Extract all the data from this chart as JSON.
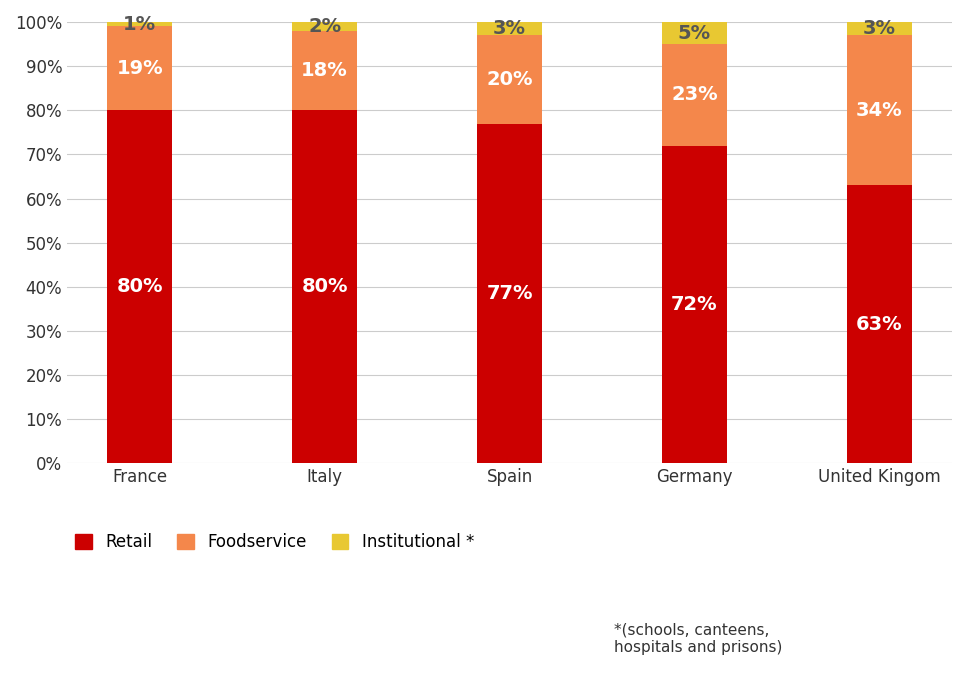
{
  "categories": [
    "France",
    "Italy",
    "Spain",
    "Germany",
    "United Kingom"
  ],
  "retail": [
    80,
    80,
    77,
    72,
    63
  ],
  "foodservice": [
    19,
    18,
    20,
    23,
    34
  ],
  "institutional": [
    1,
    2,
    3,
    5,
    3
  ],
  "retail_color": "#CC0000",
  "foodservice_color": "#F4874B",
  "institutional_color": "#E8C832",
  "retail_label": "Retail",
  "foodservice_label": "Foodservice",
  "institutional_label": "Institutional *",
  "footnote": "*(schools, canteens,\nhospitals and prisons)",
  "ylim": [
    0,
    100
  ],
  "yticks": [
    0,
    10,
    20,
    30,
    40,
    50,
    60,
    70,
    80,
    90,
    100
  ],
  "background_color": "#ffffff",
  "grid_color": "#cccccc",
  "bar_width": 0.35,
  "label_fontsize": 14,
  "tick_fontsize": 12,
  "legend_fontsize": 12,
  "institutional_label_color": "#555555"
}
